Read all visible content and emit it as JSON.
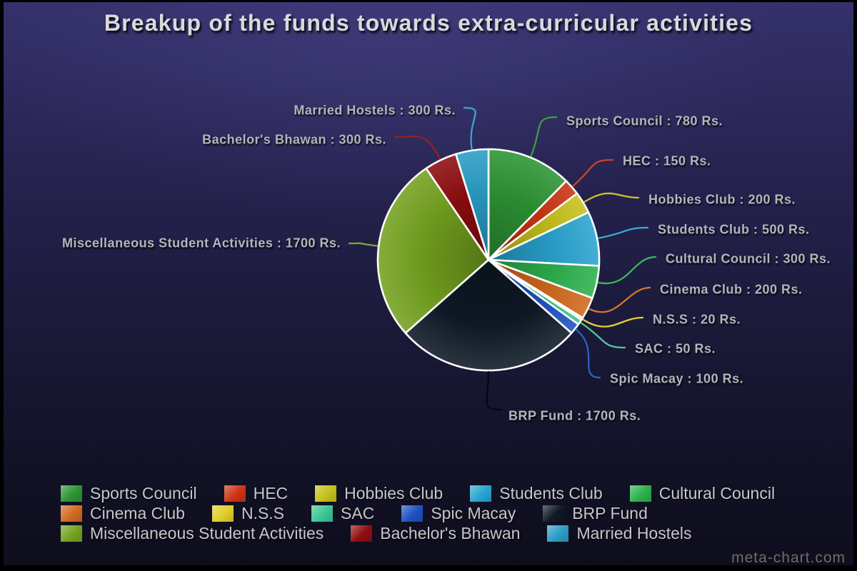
{
  "title": "Breakup of the funds towards extra-curricular activities",
  "watermark": "meta-chart.com",
  "chart_data": {
    "type": "pie",
    "title": "Breakup of the funds towards extra-curricular activities",
    "unit": "Rs.",
    "categories": [
      "Sports Council",
      "HEC",
      "Hobbies Club",
      "Students Club",
      "Cultural Council",
      "Cinema Club",
      "N.S.S",
      "SAC",
      "Spic Macay",
      "BRP Fund",
      "Miscellaneous Student Activities",
      "Bachelor's Bhawan",
      "Married Hostels"
    ],
    "values": [
      780,
      150,
      200,
      500,
      300,
      200,
      20,
      50,
      100,
      1700,
      1700,
      300,
      300
    ],
    "labels": [
      "Sports Council : 780 Rs.",
      "HEC : 150 Rs.",
      "Hobbies Club : 200 Rs.",
      "Students Club : 500 Rs.",
      "Cultural Council : 300 Rs.",
      "Cinema Club : 200 Rs.",
      "N.S.S : 20 Rs.",
      "SAC : 50 Rs.",
      "Spic Macay : 100 Rs.",
      "BRP Fund : 1700 Rs.",
      "Miscellaneous Student Activities : 1700 Rs.",
      "Bachelor's Bhawan : 300 Rs.",
      "Married Hostels : 300 Rs."
    ],
    "colors": [
      "#2d9434",
      "#cb3414",
      "#c6c01b",
      "#2aa4d0",
      "#2eb14e",
      "#d2691e",
      "#e0ce2a",
      "#3cc695",
      "#1e52c0",
      "#0e1a26",
      "#74a21f",
      "#8e0d10",
      "#2b9dc6"
    ],
    "start_angle_deg": 0,
    "direction": "clockwise",
    "legend_position": "bottom"
  }
}
